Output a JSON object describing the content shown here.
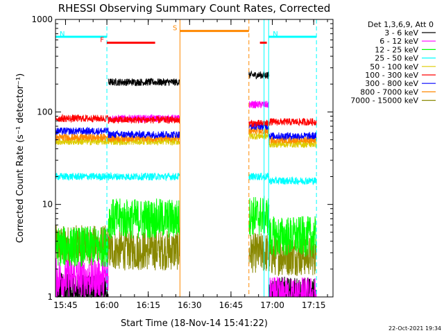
{
  "chart_data": {
    "type": "line",
    "title": "RHESSI Observing Summary Count Rates, Corrected",
    "xlabel": "Start Time (18-Nov-14 15:41:22)",
    "ylabel": "Corrected Count Rate (s⁻¹ detector⁻¹)",
    "x_ticks": [
      "15:45",
      "16:00",
      "16:15",
      "16:30",
      "16:45",
      "17:00",
      "17:15"
    ],
    "y_ticks": [
      "1",
      "10",
      "100",
      "1000"
    ],
    "y_scale": "log",
    "ylim": [
      1,
      1000
    ],
    "xlim": [
      "15:41:22",
      "17:22:00"
    ],
    "legend_title": "Det 1,3,6,9, Att 0",
    "legend_position": "top-right",
    "timestamp": "22-Oct-2021 19:34",
    "series": [
      {
        "name": "3 - 6 keV",
        "color": "#000000"
      },
      {
        "name": "6 - 12 keV",
        "color": "#ff00ff"
      },
      {
        "name": "12 - 25 keV",
        "color": "#00ff00"
      },
      {
        "name": "25 - 50 keV",
        "color": "#00ffff"
      },
      {
        "name": "50 - 100 keV",
        "color": "#ddcc00"
      },
      {
        "name": "100 - 300 keV",
        "color": "#ff0000"
      },
      {
        "name": "300 - 800 keV",
        "color": "#0000ff"
      },
      {
        "name": "800 - 7000 keV",
        "color": "#ff8800"
      },
      {
        "name": "7000 - 15000 keV",
        "color": "#888800"
      }
    ],
    "segments": [
      {
        "start": "15:41:22",
        "end": "16:00:30",
        "levels": [
          1.1,
          1.6,
          3.5,
          20,
          48,
          85,
          62,
          53,
          3.6
        ]
      },
      {
        "start": "16:00:30",
        "end": "16:26:30",
        "levels": [
          210,
          85,
          7,
          20,
          48,
          82,
          57,
          52,
          3.2
        ]
      },
      {
        "start": "16:51:30",
        "end": "16:58:50",
        "levels": [
          250,
          120,
          7.5,
          20,
          55,
          75,
          70,
          62,
          3.0
        ]
      },
      {
        "start": "16:58:50",
        "end": "17:16:00",
        "levels": [
          1.0,
          1.0,
          4.5,
          18,
          45,
          78,
          55,
          50,
          2.8
        ]
      }
    ],
    "annotations": [
      {
        "label": "N",
        "color": "#00ffff",
        "start": "15:41:22",
        "end": "16:00:00",
        "value": 650
      },
      {
        "label": "N",
        "color": "#00ffff",
        "start": "16:58:40",
        "end": "17:16:00",
        "value": 650
      },
      {
        "label": "F",
        "color": "#ff0000",
        "start": "16:00:00",
        "end": "16:17:30",
        "value": 560
      },
      {
        "label": "",
        "color": "#ff0000",
        "start": "16:55:30",
        "end": "16:58:00",
        "value": 560
      },
      {
        "label": "S",
        "color": "#ff8800",
        "start": "16:26:30",
        "end": "16:51:30",
        "value": 750
      }
    ],
    "vertical_lines": [
      {
        "time": "16:00:00",
        "color": "#00ffff",
        "style": "dashed"
      },
      {
        "time": "16:26:30",
        "color": "#ff8800",
        "style": "solid"
      },
      {
        "time": "16:51:30",
        "color": "#ff8800",
        "style": "dashed"
      },
      {
        "time": "16:57:00",
        "color": "#00ffff",
        "style": "solid"
      },
      {
        "time": "16:58:40",
        "color": "#00ffff",
        "style": "solid"
      },
      {
        "time": "17:16:00",
        "color": "#00ffff",
        "style": "dashed"
      }
    ]
  }
}
